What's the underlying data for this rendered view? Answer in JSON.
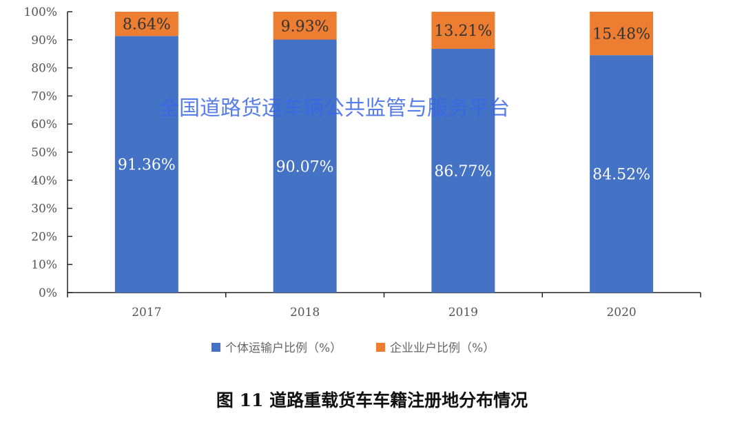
{
  "chart_data": {
    "type": "bar",
    "stacked": true,
    "categories": [
      "2017",
      "2018",
      "2019",
      "2020"
    ],
    "series": [
      {
        "name": "个体运输户比例（%）",
        "values": [
          91.36,
          90.07,
          86.77,
          84.52
        ],
        "labels": [
          "91.36%",
          "90.07%",
          "86.77%",
          "84.52%"
        ],
        "color": "#4472c4"
      },
      {
        "name": "企业业户比例（%）",
        "values": [
          8.64,
          9.93,
          13.21,
          15.48
        ],
        "labels": [
          "8.64%",
          "9.93%",
          "13.21%",
          "15.48%"
        ],
        "color": "#ed7d31"
      }
    ],
    "ylim": [
      0,
      100
    ],
    "yticks": [
      "0%",
      "10%",
      "20%",
      "30%",
      "40%",
      "50%",
      "60%",
      "70%",
      "80%",
      "90%",
      "100%"
    ],
    "grid": false,
    "legend": "bottom",
    "title": "图 11 道路重载货车车籍注册地分布情况"
  },
  "watermark": "全国道路货运车辆公共监管与服务平台"
}
